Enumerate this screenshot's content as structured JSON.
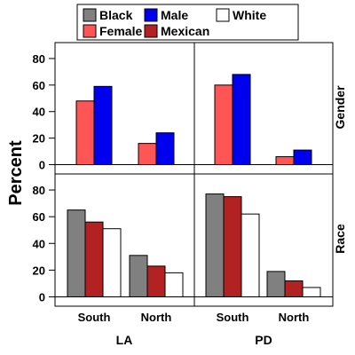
{
  "chart_data": {
    "type": "bar",
    "ylabel": "Percent",
    "ylim": [
      -7,
      92
    ],
    "yticks": [
      0,
      20,
      40,
      60,
      80
    ],
    "grid": false,
    "legend_position": "top",
    "legend": [
      {
        "name": "Black",
        "color": "#808080"
      },
      {
        "name": "Male",
        "color": "#0000ee"
      },
      {
        "name": "White",
        "color": "#ffffff"
      },
      {
        "name": "Female",
        "color": "#ff5555"
      },
      {
        "name": "Mexican",
        "color": "#b22222"
      }
    ],
    "column_labels": [
      "LA",
      "PD"
    ],
    "row_labels": [
      "Gender",
      "Race"
    ],
    "categories": [
      "South",
      "North"
    ],
    "panels": [
      {
        "column": "LA",
        "row": "Gender",
        "series": [
          {
            "name": "Female",
            "color": "#ff5555",
            "values": [
              48,
              16
            ]
          },
          {
            "name": "Male",
            "color": "#0000ee",
            "values": [
              59,
              24
            ]
          }
        ]
      },
      {
        "column": "PD",
        "row": "Gender",
        "series": [
          {
            "name": "Female",
            "color": "#ff5555",
            "values": [
              60,
              6
            ]
          },
          {
            "name": "Male",
            "color": "#0000ee",
            "values": [
              68,
              11
            ]
          }
        ]
      },
      {
        "column": "LA",
        "row": "Race",
        "series": [
          {
            "name": "Black",
            "color": "#808080",
            "values": [
              65,
              31
            ]
          },
          {
            "name": "Mexican",
            "color": "#b22222",
            "values": [
              56,
              23
            ]
          },
          {
            "name": "White",
            "color": "#ffffff",
            "values": [
              51,
              18
            ]
          }
        ]
      },
      {
        "column": "PD",
        "row": "Race",
        "series": [
          {
            "name": "Black",
            "color": "#808080",
            "values": [
              77,
              19
            ]
          },
          {
            "name": "Mexican",
            "color": "#b22222",
            "values": [
              75,
              12
            ]
          },
          {
            "name": "White",
            "color": "#ffffff",
            "values": [
              62,
              7
            ]
          }
        ]
      }
    ]
  }
}
